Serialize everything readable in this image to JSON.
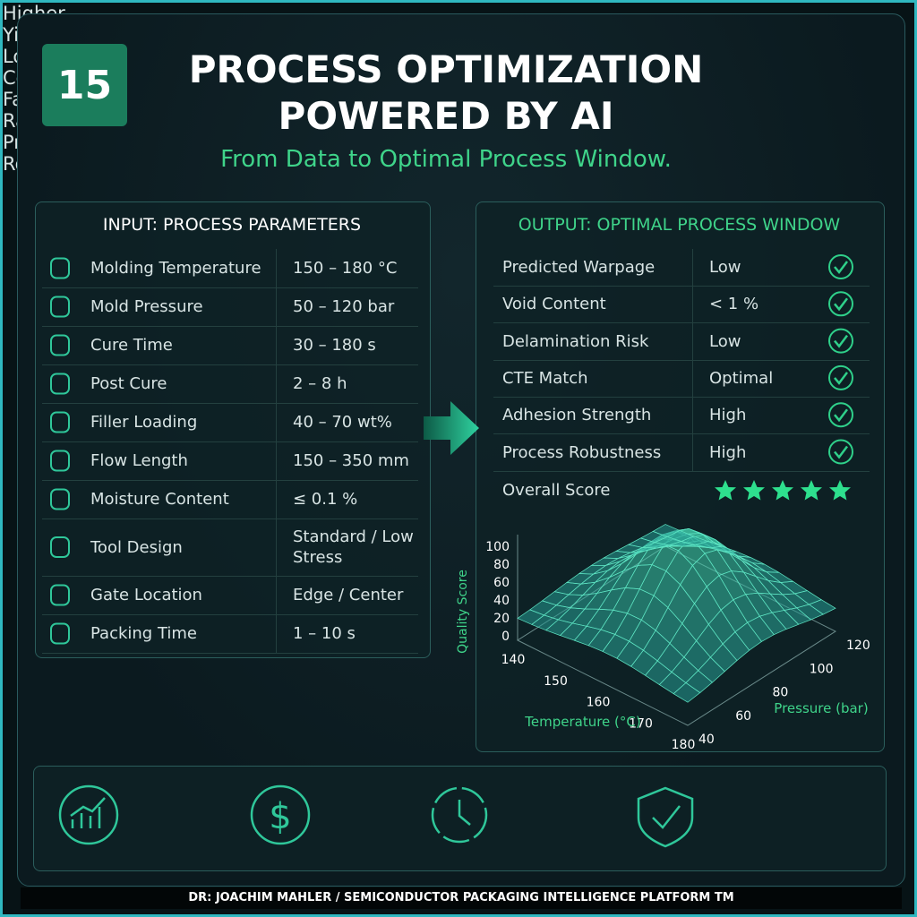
{
  "badge": "15",
  "title": [
    "PROCESS OPTIMIZATION",
    "POWERED BY AI"
  ],
  "subtitle": "From Data to Optimal Process Window.",
  "input": {
    "title": "INPUT: PROCESS PARAMETERS",
    "rows": [
      [
        "Molding Temperature",
        "150 – 180 °C"
      ],
      [
        "Mold Pressure",
        "50 – 120 bar"
      ],
      [
        "Cure Time",
        "30 – 180 s"
      ],
      [
        "Post Cure",
        "2 – 8 h"
      ],
      [
        "Filler Loading",
        "40 – 70 wt%"
      ],
      [
        "Flow Length",
        "150 – 350 mm"
      ],
      [
        "Moisture Content",
        "≤ 0.1 %"
      ],
      [
        "Tool Design",
        "Standard / Low Stress"
      ],
      [
        "Gate Location",
        "Edge / Center"
      ],
      [
        "Packing Time",
        "1 – 10 s"
      ]
    ]
  },
  "output": {
    "title": "OUTPUT: OPTIMAL PROCESS WINDOW",
    "rows": [
      [
        "Predicted Warpage",
        "Low"
      ],
      [
        "Void Content",
        "< 1 %"
      ],
      [
        "Delamination Risk",
        "Low"
      ],
      [
        "CTE Match",
        "Optimal"
      ],
      [
        "Adhesion Strength",
        "High"
      ],
      [
        "Process Robustness",
        "High"
      ]
    ],
    "score_label": "Overall Score"
  },
  "plot": {
    "z_label": "Quality Score",
    "z_ticks": [
      "100",
      "80",
      "60",
      "40",
      "20",
      "0"
    ],
    "x_label": "Temperature (°C)",
    "x_ticks": [
      "140",
      "150",
      "160",
      "170",
      "180"
    ],
    "y_label": "Pressure (bar)",
    "y_ticks": [
      "40",
      "60",
      "80",
      "100",
      "120"
    ]
  },
  "benefits": [
    [
      "Higher",
      "Yield"
    ],
    [
      "Lower",
      "Costs"
    ],
    [
      "Faster",
      "Ramp-up"
    ],
    [
      "Process",
      "Robustness"
    ]
  ],
  "footer": "DR: JOACHIM MAHLER / SEMICONDUCTOR PACKAGING INTELLIGENCE PLATFORM TM"
}
